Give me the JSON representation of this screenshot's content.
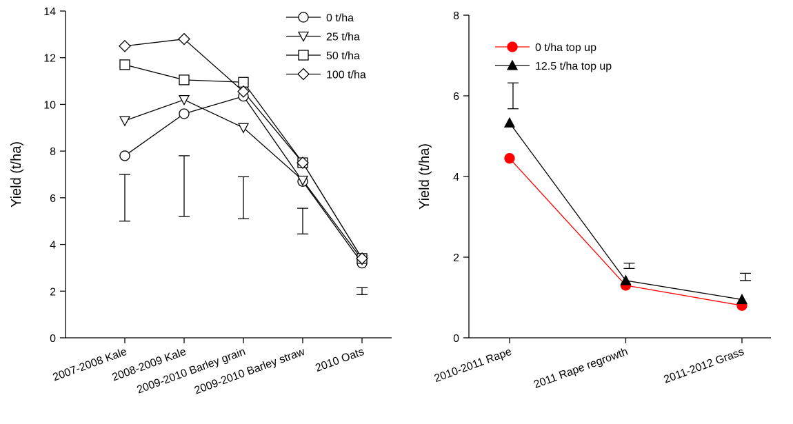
{
  "chart_data": [
    {
      "type": "line",
      "y_label": "Yield (t/ha)",
      "categories": [
        "2007-2008 Kale",
        "2008-2009 Kale",
        "2009-2010 Barley grain",
        "2009-2010 Barley straw",
        "2010 Oats"
      ],
      "series": [
        {
          "name": "0 t/ha",
          "color": "#000000",
          "marker": "circle",
          "fill": "#ffffff",
          "values": [
            7.8,
            9.6,
            10.35,
            6.7,
            3.2
          ]
        },
        {
          "name": "25 t/ha",
          "color": "#000000",
          "marker": "triangle-down",
          "fill": "#ffffff",
          "values": [
            9.3,
            10.2,
            9.0,
            6.75,
            3.35
          ]
        },
        {
          "name": "50 t/ha",
          "color": "#000000",
          "marker": "square",
          "fill": "#ffffff",
          "values": [
            11.7,
            11.05,
            10.95,
            7.5,
            3.4
          ]
        },
        {
          "name": "100 t/ha",
          "color": "#000000",
          "marker": "diamond",
          "fill": "#ffffff",
          "values": [
            12.5,
            12.8,
            10.55,
            7.5,
            3.4
          ]
        }
      ],
      "error_low": [
        5.0,
        5.2,
        5.1,
        4.45,
        1.85
      ],
      "error_high": [
        7.0,
        7.8,
        6.9,
        5.55,
        2.15
      ],
      "ylim": [
        0,
        14
      ],
      "yticks": [
        0,
        2,
        4,
        6,
        8,
        10,
        12,
        14
      ],
      "legend": "upper right"
    },
    {
      "type": "line",
      "y_label": "Yield (t/ha)",
      "categories": [
        "2010-2011 Rape",
        "2011 Rape regrowth",
        "2011-2012 Grass"
      ],
      "series": [
        {
          "name": "0 t/ha top up",
          "color": "#ff0000",
          "marker": "circle",
          "fill": "#ff0000",
          "values": [
            4.45,
            1.3,
            0.8
          ]
        },
        {
          "name": "12.5 t/ha top up",
          "color": "#000000",
          "marker": "triangle-up",
          "fill": "#000000",
          "values": [
            5.33,
            1.42,
            0.95
          ]
        }
      ],
      "error_low": [
        5.68,
        1.72,
        1.42
      ],
      "error_high": [
        6.32,
        1.85,
        1.6
      ],
      "ylim": [
        0,
        8
      ],
      "yticks": [
        0,
        2,
        4,
        6,
        8
      ],
      "legend": "upper left"
    }
  ]
}
